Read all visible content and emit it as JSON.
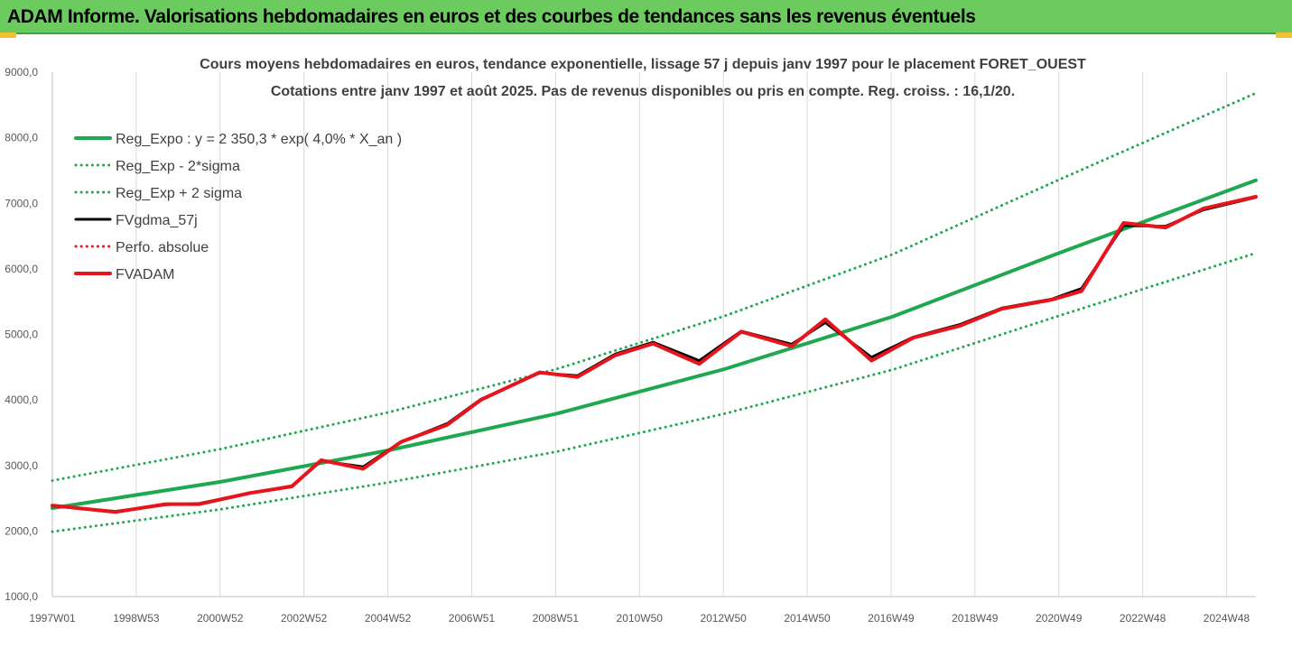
{
  "header": {
    "title": "ADAM Informe. Valorisations hebdomadaires en euros et des courbes de tendances sans les revenus éventuels"
  },
  "colors": {
    "header_bg": "#6ccb5f",
    "trend_green": "#1fa84f",
    "adam_red": "#e8141b",
    "gdma_black": "#000000",
    "grid": "#d9d9d9"
  },
  "chart_data": {
    "type": "line",
    "title_lines": [
      "Cours moyens hebdomadaires en euros, tendance exponentielle, lissage 57 j depuis janv 1997 pour le placement FORET_OUEST",
      "Cotations entre janv 1997 et août 2025. Pas de revenus disponibles ou pris en compte. Reg. croiss. : 16,1/20."
    ],
    "x_ticks": [
      "1997W01",
      "1998W53",
      "2000W52",
      "2002W52",
      "2004W52",
      "2006W51",
      "2008W51",
      "2010W50",
      "2012W50",
      "2014W50",
      "2016W49",
      "2018W49",
      "2020W49",
      "2022W48",
      "2024W48"
    ],
    "x_range": [
      1997.0,
      2025.65
    ],
    "y_ticks": [
      "1000,0",
      "2000,0",
      "3000,0",
      "4000,0",
      "5000,0",
      "6000,0",
      "7000,0",
      "8000,0",
      "9000,0"
    ],
    "ylim": [
      1000,
      9000
    ],
    "grid": "vertical",
    "legend_position": "top-left",
    "series": [
      {
        "name": "Reg_Expo : y = 2 350,3 * exp( 4,0% *  X_an )",
        "style": "solid",
        "color": "#1fa84f",
        "x": [
          1997.0,
          2001.0,
          2005.0,
          2009.0,
          2013.0,
          2017.0,
          2021.0,
          2025.65
        ],
        "y": [
          2350,
          2750,
          3230,
          3790,
          4470,
          5270,
          6250,
          7350
        ]
      },
      {
        "name": "Reg_Exp - 2*sigma",
        "style": "dotted",
        "color": "#1fa84f",
        "x": [
          1997.0,
          2001.0,
          2005.0,
          2009.0,
          2013.0,
          2017.0,
          2021.0,
          2025.65
        ],
        "y": [
          1990,
          2330,
          2740,
          3210,
          3790,
          4460,
          5290,
          6240
        ]
      },
      {
        "name": "Reg_Exp + 2 sigma",
        "style": "dotted",
        "color": "#1fa84f",
        "x": [
          1997.0,
          2001.0,
          2005.0,
          2009.0,
          2013.0,
          2017.0,
          2021.0,
          2025.65
        ],
        "y": [
          2770,
          3250,
          3810,
          4470,
          5280,
          6220,
          7370,
          8680
        ]
      },
      {
        "name": "FVgdma_57j",
        "style": "solid",
        "color": "#000000",
        "x": [
          1997.0,
          1998.5,
          1999.7,
          2000.5,
          2001.7,
          2002.7,
          2003.4,
          2004.4,
          2005.3,
          2006.4,
          2007.2,
          2008.6,
          2009.5,
          2010.4,
          2011.3,
          2012.4,
          2013.4,
          2014.6,
          2015.4,
          2016.5,
          2017.5,
          2018.6,
          2019.6,
          2020.8,
          2021.5,
          2022.5,
          2023.5,
          2024.4,
          2025.65
        ],
        "y": [
          2380,
          2300,
          2400,
          2420,
          2580,
          2690,
          3070,
          2980,
          3360,
          3640,
          4010,
          4410,
          4370,
          4700,
          4880,
          4600,
          5050,
          4850,
          5180,
          4650,
          4960,
          5150,
          5400,
          5540,
          5700,
          6660,
          6650,
          6900,
          7090
        ]
      },
      {
        "name": "Perfo. absolue",
        "style": "dotted",
        "color": "#e8141b",
        "x": [],
        "y": []
      },
      {
        "name": "FVADAM",
        "style": "solid",
        "color": "#e8141b",
        "x": [
          1997.0,
          1998.5,
          1999.7,
          2000.5,
          2001.7,
          2002.7,
          2003.4,
          2004.4,
          2005.3,
          2006.4,
          2007.2,
          2008.6,
          2009.5,
          2010.4,
          2011.3,
          2012.4,
          2013.4,
          2014.6,
          2015.4,
          2016.5,
          2017.5,
          2018.6,
          2019.6,
          2020.8,
          2021.5,
          2022.5,
          2023.5,
          2024.4,
          2025.65
        ],
        "y": [
          2390,
          2290,
          2410,
          2410,
          2580,
          2680,
          3080,
          2950,
          3360,
          3620,
          4000,
          4420,
          4350,
          4680,
          4860,
          4550,
          5040,
          4820,
          5230,
          4600,
          4950,
          5130,
          5390,
          5530,
          5660,
          6700,
          6630,
          6920,
          7100
        ]
      }
    ]
  }
}
